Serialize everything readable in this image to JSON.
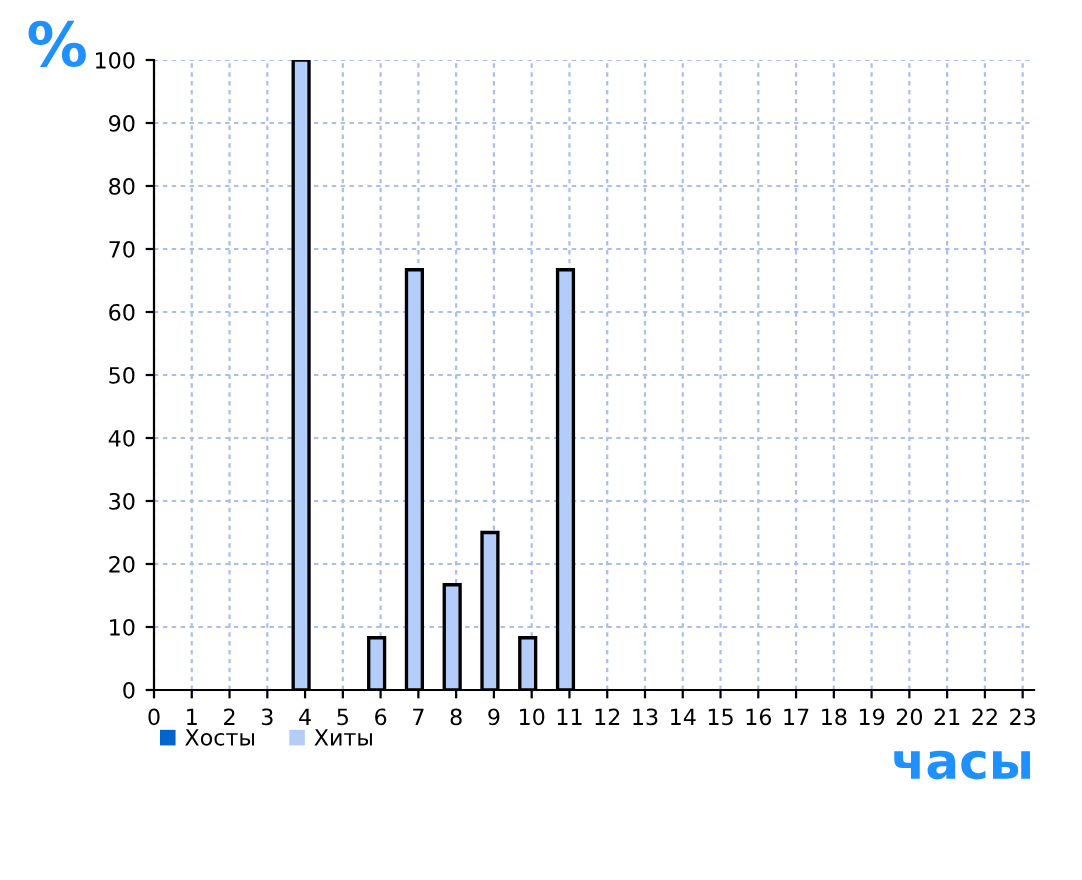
{
  "chart_data": {
    "type": "bar",
    "xlabel": "часы",
    "ylabel": "%",
    "categories": [
      "0",
      "1",
      "2",
      "3",
      "4",
      "5",
      "6",
      "7",
      "8",
      "9",
      "10",
      "11",
      "12",
      "13",
      "14",
      "15",
      "16",
      "17",
      "18",
      "19",
      "20",
      "21",
      "22",
      "23"
    ],
    "series": [
      {
        "name": "Хосты",
        "color": "#0066cc",
        "values": [
          0,
          0,
          0,
          0,
          0,
          0,
          0,
          0,
          0,
          0,
          0,
          0,
          0,
          0,
          0,
          0,
          0,
          0,
          0,
          0,
          0,
          0,
          0,
          0
        ]
      },
      {
        "name": "Хиты",
        "color": "#b4ccfa",
        "values": [
          0,
          0,
          0,
          0,
          100,
          0,
          8.3,
          66.7,
          16.7,
          25,
          8.3,
          66.7,
          0,
          0,
          0,
          0,
          0,
          0,
          0,
          0,
          0,
          0,
          0,
          0
        ]
      }
    ],
    "ylim": [
      0,
      100
    ],
    "yticks": [
      0,
      10,
      20,
      30,
      40,
      50,
      60,
      70,
      80,
      90,
      100
    ],
    "grid": true,
    "legend": "bottom left"
  }
}
